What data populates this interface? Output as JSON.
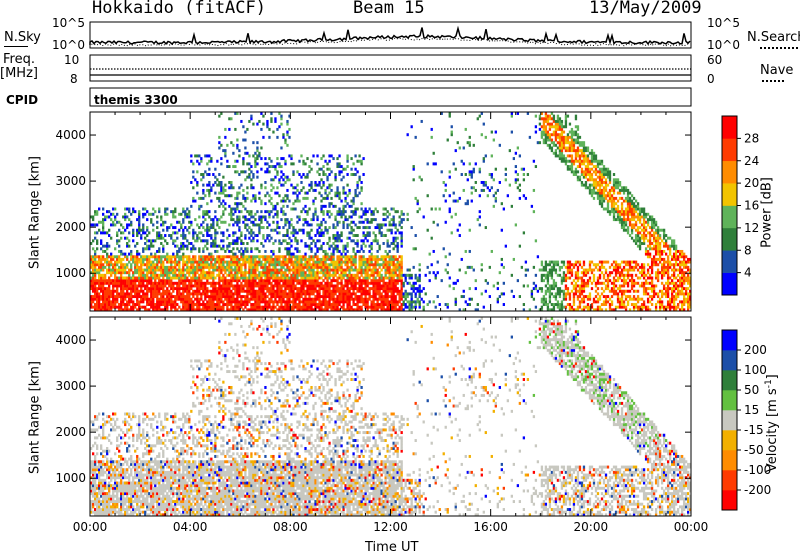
{
  "header": {
    "station": "Hokkaido (fitACF)",
    "beam": "Beam 15",
    "date": "13/May/2009"
  },
  "top_panels": {
    "nsky_label": "N.Sky",
    "nsearch_label": "N.Search",
    "freq_label": "Freq.",
    "freq_unit": "[MHz]",
    "nave_label": "Nave",
    "cpid_label": "CPID",
    "cpid_value": "themis 3300",
    "nsky_ticks": [
      "10^5",
      "10^0"
    ],
    "nsearch_ticks": [
      "10^5",
      "10^0"
    ],
    "freq_ticks": [
      "10",
      "8"
    ],
    "nave_ticks": [
      "60",
      "0"
    ]
  },
  "colors": {
    "power_scale": [
      "#0000ff",
      "#1c4fa8",
      "#2f7f3a",
      "#5fb35a",
      "#f2c400",
      "#ff8c00",
      "#ff3b00",
      "#ff0000"
    ],
    "velocity_scale": [
      "#ff0000",
      "#ff3b00",
      "#ff8c00",
      "#f2b000",
      "#c8c8c0",
      "#63c040",
      "#2f7f3a",
      "#1c4fa8",
      "#0000ff"
    ],
    "ground_scatter": "#c8c8c0"
  },
  "chart_data": [
    {
      "type": "heatmap",
      "title": "",
      "xlabel": "",
      "ylabel": "Slant Range [km]",
      "colorbar_label": "Power [dB]",
      "colorbar_ticks": [
        "4",
        "8",
        "12",
        "16",
        "20",
        "24",
        "28"
      ],
      "x_ticks": [],
      "y_ticks": [
        "1000",
        "2000",
        "3000",
        "4000"
      ],
      "xlim": [
        0,
        24
      ],
      "ylim": [
        180,
        4500
      ],
      "grid": false
    },
    {
      "type": "heatmap",
      "title": "",
      "xlabel": "Time UT",
      "ylabel": "Slant Range [km]",
      "colorbar_label": "Velocity [m s",
      "colorbar_unit_exp": "-1",
      "colorbar_unit_close": "]",
      "colorbar_ticks": [
        "-200",
        "-100",
        "-50",
        "-15",
        "15",
        "50",
        "100",
        "200"
      ],
      "x_ticks": [
        "00:00",
        "04:00",
        "08:00",
        "12:00",
        "16:00",
        "20:00",
        "00:00"
      ],
      "y_ticks": [
        "1000",
        "2000",
        "3000",
        "4000"
      ],
      "xlim": [
        0,
        24
      ],
      "ylim": [
        180,
        4500
      ],
      "grid": false
    }
  ]
}
